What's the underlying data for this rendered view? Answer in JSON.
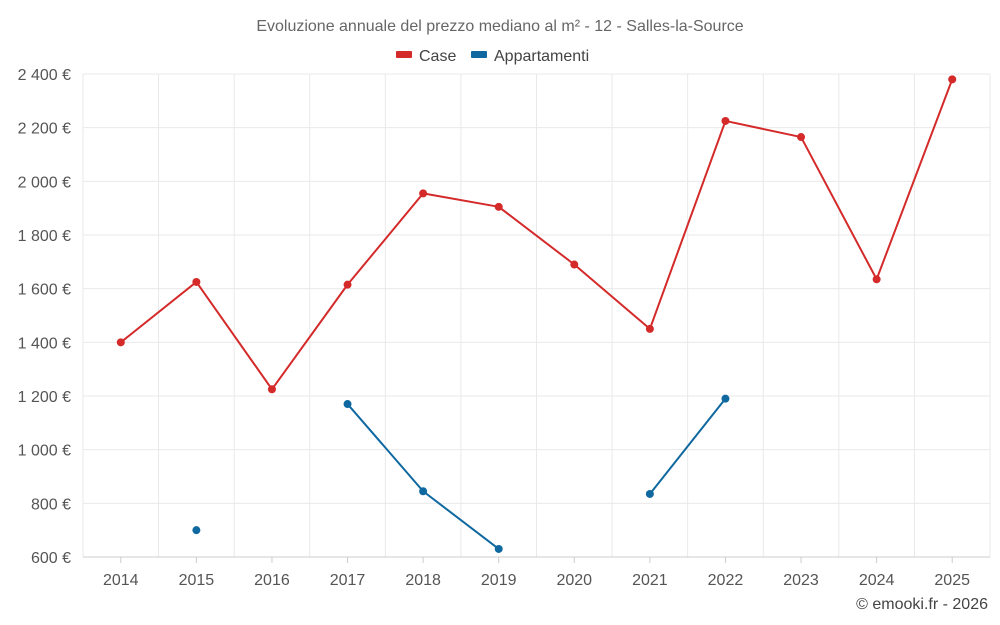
{
  "chart_data": {
    "type": "line",
    "title": "Evoluzione annuale del prezzo mediano al m² - 12 - Salles-la-Source",
    "categories": [
      "2014",
      "2015",
      "2016",
      "2017",
      "2018",
      "2019",
      "2020",
      "2021",
      "2022",
      "2023",
      "2024",
      "2025"
    ],
    "series": [
      {
        "name": "Case",
        "color": "#d42a2a",
        "values": [
          1400,
          1625,
          1225,
          1615,
          1955,
          1905,
          1690,
          1450,
          2225,
          2165,
          1635,
          2380
        ]
      },
      {
        "name": "Appartamenti",
        "color": "#0f68a0",
        "values": [
          null,
          700,
          null,
          1170,
          845,
          630,
          null,
          835,
          1190,
          null,
          null,
          null
        ]
      }
    ],
    "y_ticks": [
      {
        "value": 600,
        "label": "600 €"
      },
      {
        "value": 800,
        "label": "800 €"
      },
      {
        "value": 1000,
        "label": "1 000 €"
      },
      {
        "value": 1200,
        "label": "1 200 €"
      },
      {
        "value": 1400,
        "label": "1 400 €"
      },
      {
        "value": 1600,
        "label": "1 600 €"
      },
      {
        "value": 1800,
        "label": "1 800 €"
      },
      {
        "value": 2000,
        "label": "2 000 €"
      },
      {
        "value": 2200,
        "label": "2 200 €"
      },
      {
        "value": 2400,
        "label": "2 400 €"
      }
    ],
    "ylim": [
      600,
      2400
    ],
    "xlabel": "",
    "ylabel": "",
    "grid": true,
    "legend_position": "top-center",
    "credit": "© emooki.fr - 2026"
  }
}
